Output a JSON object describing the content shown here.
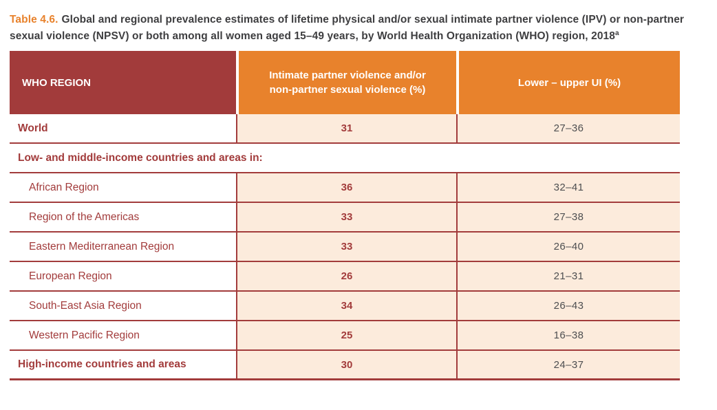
{
  "title": {
    "label": "Table 4.6.",
    "text": "Global and regional prevalence estimates of lifetime physical and/or sexual intimate partner violence (IPV) or non-partner sexual violence (NPSV) or both among all women aged 15–49 years, by World Health Organization (WHO) region, 2018",
    "footnote_marker": "a"
  },
  "table": {
    "columns": [
      "WHO REGION",
      "Intimate partner violence and/or non-partner sexual violence (%)",
      "Lower – upper UI (%)"
    ],
    "rows": [
      {
        "region": "World",
        "value": "31",
        "ui": "27–36",
        "style": "bold"
      },
      {
        "region": "Low- and middle-income countries and areas in:",
        "style": "subheader"
      },
      {
        "region": "African Region",
        "value": "36",
        "ui": "32–41",
        "style": "indent"
      },
      {
        "region": "Region of the Americas",
        "value": "33",
        "ui": "27–38",
        "style": "indent"
      },
      {
        "region": "Eastern Mediterranean Region",
        "value": "33",
        "ui": "26–40",
        "style": "indent"
      },
      {
        "region": "European Region",
        "value": "26",
        "ui": "21–31",
        "style": "indent"
      },
      {
        "region": "South-East Asia Region",
        "value": "34",
        "ui": "26–43",
        "style": "indent"
      },
      {
        "region": "Western Pacific Region",
        "value": "25",
        "ui": "16–38",
        "style": "indent"
      },
      {
        "region": "High-income countries and areas",
        "value": "30",
        "ui": "24–37",
        "style": "bold"
      }
    ]
  },
  "colors": {
    "accent_orange": "#E8822C",
    "header_red": "#A23B3B",
    "row_peach": "#FCEBDC",
    "text_dark": "#3E3E40",
    "ui_text": "#4D4E50"
  }
}
